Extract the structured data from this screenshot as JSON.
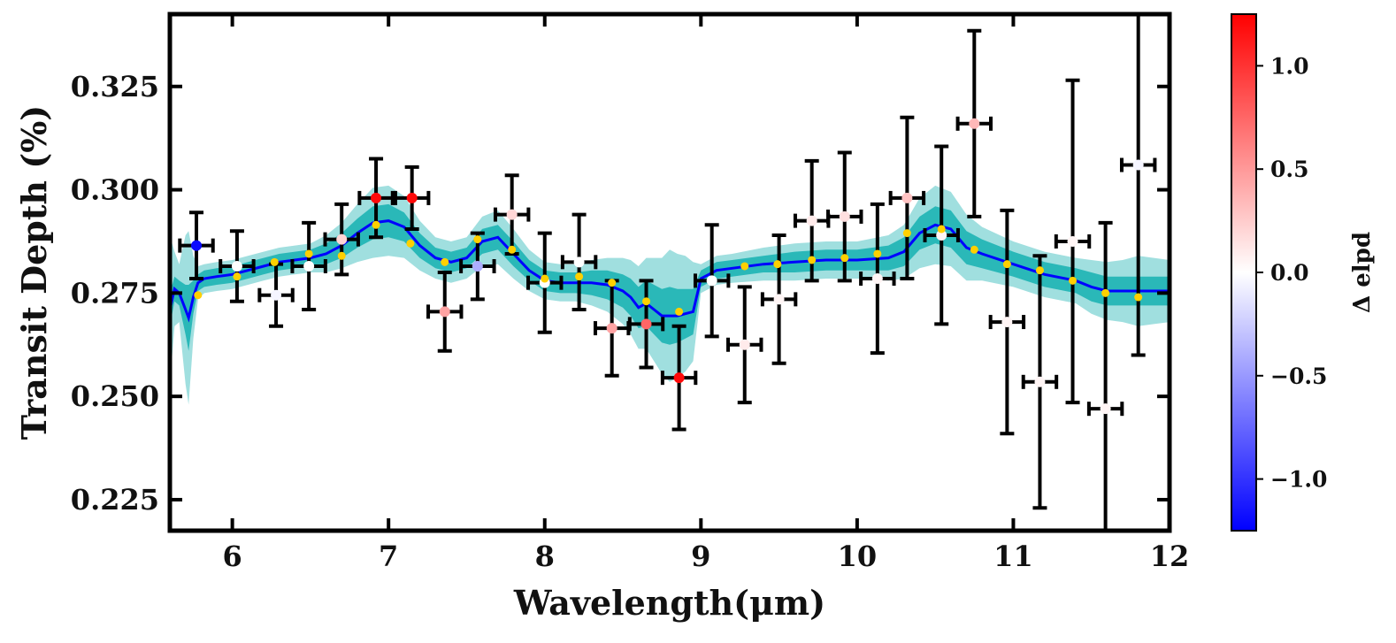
{
  "chart_data": {
    "type": "scatter",
    "xlabel": "Wavelength(μm)",
    "ylabel": "Transit Depth (%)",
    "xlim": [
      5.6,
      12.0
    ],
    "ylim": [
      0.2175,
      0.3425
    ],
    "xticks": [
      6,
      7,
      8,
      9,
      10,
      11,
      12
    ],
    "xtick_labels": [
      "6",
      "7",
      "8",
      "9",
      "10",
      "11",
      "12"
    ],
    "yticks": [
      0.225,
      0.25,
      0.275,
      0.3,
      0.325
    ],
    "ytick_labels": [
      "0.225",
      "0.250",
      "0.275",
      "0.300",
      "0.325"
    ],
    "grid": false,
    "colorbar": {
      "label": "Δ elpd",
      "range": [
        -1.25,
        1.25
      ],
      "ticks": [
        1.0,
        0.5,
        0.0,
        -0.5,
        -1.0
      ],
      "tick_labels": [
        "1.0",
        "0.5",
        "0.0",
        "−0.5",
        "−1.0"
      ],
      "colormap": "bwr",
      "colors": {
        "low": "#0000ff",
        "mid": "#ffffff",
        "high": "#ff0000"
      }
    },
    "model": {
      "line_color": "#0000ff",
      "band_1sigma_color": "#2ab8b8",
      "band_2sigma_color": "#a0dfdf",
      "wavelength": [
        5.6,
        5.63,
        5.66,
        5.7,
        5.72,
        5.75,
        5.78,
        5.82,
        5.9,
        6.0,
        6.1,
        6.2,
        6.3,
        6.4,
        6.5,
        6.6,
        6.7,
        6.8,
        6.9,
        7.0,
        7.1,
        7.2,
        7.3,
        7.4,
        7.5,
        7.6,
        7.7,
        7.8,
        7.9,
        8.0,
        8.1,
        8.2,
        8.3,
        8.4,
        8.5,
        8.55,
        8.6,
        8.65,
        8.7,
        8.75,
        8.8,
        8.85,
        8.9,
        8.95,
        9.0,
        9.1,
        9.2,
        9.4,
        9.6,
        9.8,
        10.0,
        10.2,
        10.3,
        10.4,
        10.5,
        10.6,
        10.7,
        10.8,
        11.0,
        11.2,
        11.4,
        11.5,
        11.6,
        11.7,
        11.8,
        11.9,
        12.0
      ],
      "depth": [
        0.271,
        0.276,
        0.275,
        0.271,
        0.269,
        0.274,
        0.2775,
        0.2785,
        0.279,
        0.2795,
        0.2805,
        0.2815,
        0.2825,
        0.283,
        0.2835,
        0.2845,
        0.2865,
        0.2895,
        0.292,
        0.2925,
        0.291,
        0.2865,
        0.2835,
        0.2825,
        0.2835,
        0.2875,
        0.2885,
        0.2845,
        0.2805,
        0.278,
        0.2775,
        0.2775,
        0.2775,
        0.277,
        0.2755,
        0.274,
        0.2715,
        0.2725,
        0.271,
        0.2695,
        0.2695,
        0.2695,
        0.27,
        0.2705,
        0.2785,
        0.2805,
        0.281,
        0.282,
        0.2825,
        0.283,
        0.283,
        0.2835,
        0.285,
        0.2895,
        0.2915,
        0.2905,
        0.286,
        0.2845,
        0.282,
        0.2795,
        0.278,
        0.2765,
        0.2755,
        0.2755,
        0.2755,
        0.2755,
        0.2755
      ],
      "sigma1": [
        0.004,
        0.003,
        0.003,
        0.006,
        0.008,
        0.004,
        0.002,
        0.002,
        0.002,
        0.002,
        0.002,
        0.002,
        0.002,
        0.002,
        0.002,
        0.0025,
        0.003,
        0.0035,
        0.004,
        0.004,
        0.0035,
        0.003,
        0.0025,
        0.0025,
        0.0025,
        0.003,
        0.003,
        0.003,
        0.0025,
        0.0025,
        0.0025,
        0.0025,
        0.003,
        0.0035,
        0.004,
        0.0045,
        0.005,
        0.0055,
        0.006,
        0.0065,
        0.007,
        0.0065,
        0.006,
        0.0055,
        0.002,
        0.002,
        0.002,
        0.002,
        0.0025,
        0.0025,
        0.0025,
        0.003,
        0.0035,
        0.004,
        0.0045,
        0.0045,
        0.004,
        0.0035,
        0.003,
        0.003,
        0.003,
        0.0035,
        0.0035,
        0.0035,
        0.0035,
        0.0035,
        0.0035
      ],
      "sigma2": [
        0.018,
        0.009,
        0.007,
        0.018,
        0.021,
        0.01,
        0.004,
        0.0035,
        0.0035,
        0.0035,
        0.0035,
        0.0035,
        0.0035,
        0.0035,
        0.0035,
        0.0045,
        0.0055,
        0.007,
        0.0085,
        0.0085,
        0.0075,
        0.006,
        0.005,
        0.005,
        0.005,
        0.006,
        0.0065,
        0.006,
        0.005,
        0.0045,
        0.0045,
        0.0045,
        0.0055,
        0.0065,
        0.008,
        0.009,
        0.01,
        0.011,
        0.0125,
        0.014,
        0.016,
        0.015,
        0.014,
        0.012,
        0.0035,
        0.0035,
        0.0035,
        0.004,
        0.0045,
        0.0045,
        0.0045,
        0.0055,
        0.0065,
        0.0085,
        0.0095,
        0.009,
        0.008,
        0.0065,
        0.0055,
        0.0055,
        0.0055,
        0.0065,
        0.007,
        0.0075,
        0.0085,
        0.008,
        0.0075
      ]
    },
    "binned_model_points": {
      "color": "#ffd000",
      "x": [
        5.78,
        6.03,
        6.27,
        6.49,
        6.7,
        6.92,
        7.14,
        7.36,
        7.57,
        7.79,
        8.0,
        8.22,
        8.43,
        8.65,
        8.86,
        9.28,
        9.49,
        9.71,
        9.92,
        10.13,
        10.32,
        10.54,
        10.75,
        10.96,
        11.17,
        11.38,
        11.59,
        11.8
      ],
      "y": [
        0.2745,
        0.279,
        0.2825,
        0.2845,
        0.284,
        0.2915,
        0.287,
        0.2825,
        0.288,
        0.2855,
        0.2785,
        0.279,
        0.2775,
        0.273,
        0.2705,
        0.2815,
        0.282,
        0.283,
        0.2835,
        0.2845,
        0.2895,
        0.2905,
        0.2855,
        0.282,
        0.2805,
        0.278,
        0.275,
        0.274
      ]
    },
    "observations": {
      "x": [
        5.77,
        6.03,
        6.28,
        6.49,
        6.7,
        6.92,
        7.15,
        7.36,
        7.57,
        7.79,
        8.0,
        8.22,
        8.43,
        8.65,
        8.86,
        9.07,
        9.28,
        9.5,
        9.71,
        9.92,
        10.13,
        10.32,
        10.54,
        10.75,
        10.96,
        11.17,
        11.38,
        11.59,
        11.8
      ],
      "y": [
        0.2865,
        0.2815,
        0.2745,
        0.2815,
        0.288,
        0.298,
        0.298,
        0.2705,
        0.2815,
        0.294,
        0.2775,
        0.2825,
        0.2665,
        0.2675,
        0.2545,
        0.278,
        0.2625,
        0.2735,
        0.2925,
        0.2935,
        0.2785,
        0.298,
        0.289,
        0.316,
        0.268,
        0.2535,
        0.2875,
        0.247,
        0.306
      ],
      "yerr": [
        0.008,
        0.0085,
        0.0075,
        0.0105,
        0.0085,
        0.0095,
        0.0075,
        0.0095,
        0.008,
        0.0095,
        0.012,
        0.0115,
        0.0115,
        0.0105,
        0.0125,
        0.0135,
        0.014,
        0.0155,
        0.0145,
        0.0155,
        0.018,
        0.0195,
        0.0215,
        0.0225,
        0.027,
        0.0305,
        0.039,
        0.045,
        0.046
      ],
      "xerr": [
        0.106,
        0.106,
        0.106,
        0.106,
        0.106,
        0.106,
        0.106,
        0.106,
        0.106,
        0.106,
        0.106,
        0.106,
        0.106,
        0.106,
        0.106,
        0.106,
        0.106,
        0.106,
        0.106,
        0.106,
        0.106,
        0.106,
        0.106,
        0.106,
        0.106,
        0.106,
        0.106,
        0.106,
        0.106
      ],
      "delta_elpd": [
        -1.2,
        0.0,
        -0.05,
        0.0,
        0.2,
        1.2,
        1.2,
        0.45,
        -0.4,
        0.2,
        0.0,
        0.0,
        0.45,
        0.75,
        1.2,
        0.0,
        0.1,
        0.05,
        0.1,
        0.15,
        0.05,
        0.3,
        0.05,
        0.35,
        0.05,
        0.05,
        0.05,
        0.05,
        -0.05
      ]
    }
  }
}
